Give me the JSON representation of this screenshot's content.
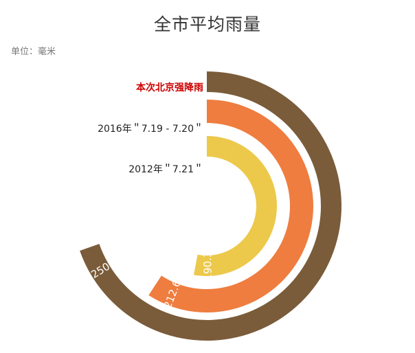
{
  "title": "全市平均雨量",
  "unit_label": "单位：毫米",
  "chart_data": {
    "type": "radial-bar",
    "title": "全市平均雨量",
    "unit": "毫米",
    "series": [
      {
        "name": "本次北京强降雨",
        "value": 250,
        "color": "#7a5c3a",
        "label_color": "#cc0000"
      },
      {
        "name": "2016年＂7.19 - 7.20＂",
        "value": 212.6,
        "color": "#ee7d3f",
        "label_color": "#222222"
      },
      {
        "name": "2012年＂7.21＂",
        "value": 190.3,
        "color": "#ecc94b",
        "label_color": "#222222"
      }
    ],
    "max": 250
  }
}
